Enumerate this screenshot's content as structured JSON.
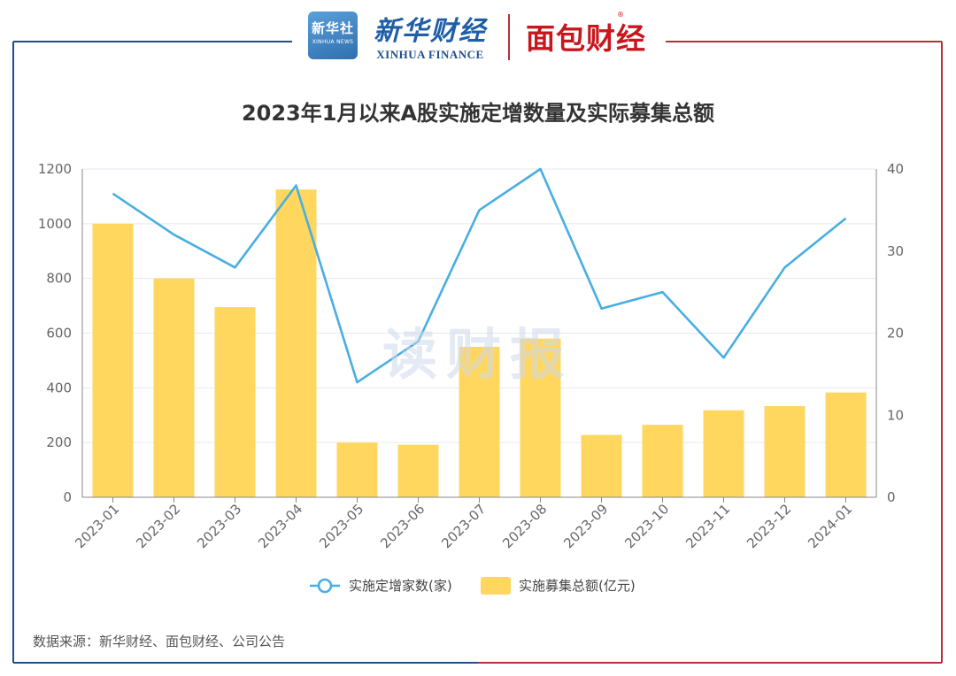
{
  "header": {
    "badge_text": "新华社",
    "badge_sub": "XINHUA NEWS",
    "brand_cn": "新华财经",
    "brand_en": "XINHUA FINANCE",
    "partner": "面包财经",
    "partner_mark": "®"
  },
  "watermark": "读财报",
  "source": "数据来源：新华财经、面包财经、公司公告",
  "colors": {
    "frame_left": "#1f4f8a",
    "frame_right": "#b5313a",
    "bar": "#ffd75e",
    "line": "#49aee0",
    "grid": "#e6e9ef"
  },
  "chart_data": {
    "type": "bar",
    "title": "2023年1月以来A股实施定增数量及实际募集总额",
    "categories": [
      "2023-01",
      "2023-02",
      "2023-03",
      "2023-04",
      "2023-05",
      "2023-06",
      "2023-07",
      "2023-08",
      "2023-09",
      "2023-10",
      "2023-11",
      "2023-12",
      "2024-01"
    ],
    "series": [
      {
        "name": "实施募集总额(亿元)",
        "type": "bar",
        "axis": "left",
        "values": [
          1000,
          800,
          695,
          1125,
          200,
          192,
          550,
          580,
          228,
          265,
          318,
          333,
          383
        ]
      },
      {
        "name": "实施定增家数(家)",
        "type": "line",
        "axis": "right",
        "values": [
          37,
          32,
          28,
          38,
          14,
          19,
          35,
          40,
          23,
          25,
          17,
          28,
          34
        ]
      }
    ],
    "left_axis": {
      "range": [
        0,
        1200
      ],
      "ticks": [
        "0",
        "200",
        "400",
        "600",
        "800",
        "1000",
        "1200"
      ]
    },
    "right_axis": {
      "range": [
        0,
        40
      ],
      "ticks": [
        "0",
        "10",
        "20",
        "30",
        "40"
      ]
    },
    "grid": true,
    "legend_position": "bottom"
  }
}
